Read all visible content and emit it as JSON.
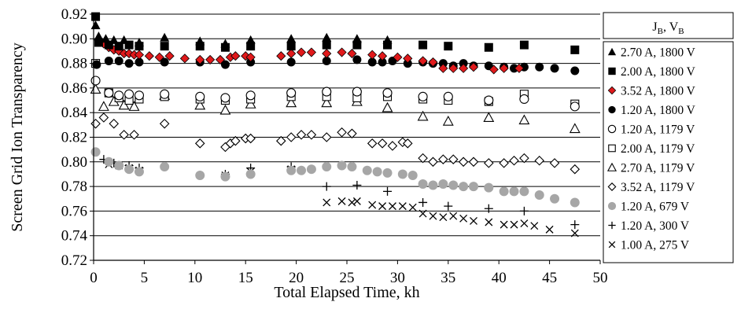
{
  "chart_data": {
    "type": "scatter",
    "title": "",
    "xlabel": "Total Elapsed Time, kh",
    "ylabel": "Screen Grid Ion Transparency",
    "xlim": [
      0,
      50
    ],
    "ylim": [
      0.72,
      0.92
    ],
    "xticks": [
      "0",
      "5",
      "10",
      "15",
      "20",
      "25",
      "30",
      "35",
      "40",
      "45",
      "50"
    ],
    "yticks": [
      "0.72",
      "0.74",
      "0.76",
      "0.78",
      "0.80",
      "0.82",
      "0.84",
      "0.86",
      "0.88",
      "0.90",
      "0.92"
    ],
    "grid": "horizontal",
    "legend_position": "right",
    "legend_title": {
      "main": "J",
      "sub1": "B",
      "sep": ", V",
      "sub2": "B"
    },
    "series": [
      {
        "name": "2.70 A, 1800 V",
        "marker": "triangle-filled",
        "color": "#000000",
        "x": [
          0.2,
          0.5,
          1.2,
          2.0,
          3.0,
          4.5,
          7.0,
          10.5,
          13.0,
          15.5,
          19.5,
          23.0,
          26.0,
          29.0
        ],
        "y": [
          0.911,
          0.902,
          0.9,
          0.899,
          0.899,
          0.897,
          0.901,
          0.898,
          0.896,
          0.899,
          0.9,
          0.901,
          0.9,
          0.899
        ]
      },
      {
        "name": "2.00 A, 1800 V",
        "marker": "square-filled",
        "color": "#000000",
        "x": [
          0.2,
          0.5,
          1.5,
          2.5,
          3.5,
          4.5,
          7.0,
          10.5,
          13.0,
          15.5,
          19.5,
          23.0,
          26.0,
          29.0,
          32.5,
          35.0,
          39.0,
          42.5,
          47.5
        ],
        "y": [
          0.918,
          0.897,
          0.895,
          0.894,
          0.895,
          0.894,
          0.894,
          0.894,
          0.893,
          0.894,
          0.894,
          0.895,
          0.895,
          0.895,
          0.895,
          0.894,
          0.893,
          0.895,
          0.891
        ]
      },
      {
        "name": "3.52 A, 1800 V",
        "marker": "diamond-red",
        "color": "#e0191b",
        "x": [
          0.5,
          1.0,
          1.5,
          2.0,
          2.5,
          3.0,
          3.5,
          4.0,
          4.5,
          5.5,
          6.5,
          7.5,
          9.0,
          10.5,
          11.5,
          12.5,
          13.5,
          14.0,
          15.0,
          15.5,
          18.5,
          19.5,
          20.5,
          21.5,
          23.0,
          24.5,
          25.5,
          27.5,
          28.5,
          30.0,
          31.0,
          32.5,
          33.5,
          34.5,
          35.5,
          36.5,
          37.5,
          39.5,
          40.5,
          42.0
        ],
        "y": [
          0.899,
          0.896,
          0.893,
          0.891,
          0.89,
          0.888,
          0.888,
          0.887,
          0.887,
          0.886,
          0.885,
          0.886,
          0.884,
          0.883,
          0.883,
          0.883,
          0.885,
          0.886,
          0.886,
          0.885,
          0.886,
          0.888,
          0.889,
          0.889,
          0.888,
          0.889,
          0.888,
          0.887,
          0.886,
          0.885,
          0.884,
          0.882,
          0.881,
          0.876,
          0.876,
          0.876,
          0.877,
          0.875,
          0.876,
          0.876
        ]
      },
      {
        "name": "1.20 A, 1800 V",
        "marker": "circle-filled",
        "color": "#000000",
        "x": [
          0.3,
          1.5,
          2.5,
          3.5,
          4.5,
          7.0,
          10.5,
          13.0,
          15.5,
          19.5,
          23.0,
          26.0,
          27.5,
          28.5,
          29.5,
          31.0,
          32.5,
          33.5,
          34.5,
          35.5,
          36.5,
          37.5,
          39.0,
          40.5,
          41.5,
          42.5,
          44.0,
          45.5,
          47.5
        ],
        "y": [
          0.879,
          0.882,
          0.882,
          0.88,
          0.881,
          0.881,
          0.881,
          0.879,
          0.881,
          0.881,
          0.882,
          0.883,
          0.881,
          0.881,
          0.882,
          0.88,
          0.881,
          0.88,
          0.88,
          0.878,
          0.88,
          0.878,
          0.878,
          0.877,
          0.876,
          0.877,
          0.877,
          0.876,
          0.874
        ]
      },
      {
        "name": "1.20 A, 1179 V",
        "marker": "circle-open",
        "color": "#000000",
        "x": [
          0.2,
          1.5,
          2.5,
          3.5,
          4.5,
          7.0,
          10.5,
          13.0,
          15.5,
          19.5,
          23.0,
          26.0,
          29.0,
          32.5,
          35.0,
          39.0,
          42.5,
          47.5
        ],
        "y": [
          0.866,
          0.856,
          0.854,
          0.855,
          0.854,
          0.855,
          0.853,
          0.852,
          0.854,
          0.856,
          0.857,
          0.857,
          0.856,
          0.853,
          0.853,
          0.85,
          0.851,
          0.845
        ]
      },
      {
        "name": "2.00 A, 1179 V",
        "marker": "square-open",
        "color": "#000000",
        "x": [
          0.2,
          1.5,
          2.5,
          3.5,
          4.5,
          7.0,
          10.5,
          13.0,
          15.5,
          19.5,
          23.0,
          26.0,
          29.0,
          32.5,
          35.0,
          39.0,
          42.5,
          47.5
        ],
        "y": [
          0.88,
          0.856,
          0.852,
          0.85,
          0.851,
          0.853,
          0.851,
          0.85,
          0.851,
          0.853,
          0.853,
          0.852,
          0.853,
          0.851,
          0.85,
          0.849,
          0.855,
          0.847
        ]
      },
      {
        "name": "2.70 A, 1179 V",
        "marker": "triangle-open",
        "color": "#000000",
        "x": [
          0.2,
          1.0,
          2.0,
          3.0,
          4.0,
          7.0,
          10.5,
          13.0,
          15.5,
          19.5,
          23.0,
          26.0,
          29.0,
          32.5,
          35.0,
          39.0,
          42.5,
          47.5
        ],
        "y": [
          0.859,
          0.845,
          0.849,
          0.846,
          0.845,
          0.854,
          0.846,
          0.842,
          0.847,
          0.848,
          0.848,
          0.849,
          0.844,
          0.837,
          0.833,
          0.836,
          0.834,
          0.827
        ]
      },
      {
        "name": "3.52 A, 1179 V",
        "marker": "diamond-open",
        "color": "#000000",
        "x": [
          0.2,
          1.0,
          2.0,
          3.0,
          4.0,
          7.0,
          10.5,
          13.0,
          13.5,
          14.0,
          15.0,
          15.5,
          18.5,
          19.5,
          20.5,
          21.5,
          23.0,
          24.5,
          25.5,
          27.5,
          28.5,
          29.5,
          30.5,
          31.0,
          32.5,
          33.5,
          34.5,
          35.5,
          36.5,
          37.5,
          39.0,
          40.5,
          41.5,
          42.5,
          44.0,
          45.5,
          47.5
        ],
        "y": [
          0.831,
          0.836,
          0.831,
          0.822,
          0.822,
          0.831,
          0.815,
          0.812,
          0.815,
          0.817,
          0.819,
          0.819,
          0.817,
          0.82,
          0.822,
          0.822,
          0.82,
          0.824,
          0.823,
          0.815,
          0.815,
          0.813,
          0.816,
          0.815,
          0.803,
          0.8,
          0.802,
          0.802,
          0.8,
          0.8,
          0.799,
          0.799,
          0.801,
          0.803,
          0.801,
          0.799,
          0.794
        ]
      },
      {
        "name": "1.20 A, 679 V",
        "marker": "circle-gray",
        "color": "#a6a6a6",
        "x": [
          0.2,
          1.5,
          2.5,
          3.5,
          4.5,
          7.0,
          10.5,
          13.0,
          15.5,
          19.5,
          20.5,
          21.5,
          23.0,
          24.5,
          25.5,
          27.0,
          28.0,
          29.0,
          30.5,
          31.5,
          32.5,
          33.5,
          34.5,
          35.5,
          36.5,
          37.5,
          39.0,
          40.5,
          41.5,
          42.5,
          44.0,
          45.5,
          47.5
        ],
        "y": [
          0.808,
          0.8,
          0.797,
          0.794,
          0.792,
          0.796,
          0.789,
          0.788,
          0.79,
          0.793,
          0.793,
          0.794,
          0.796,
          0.797,
          0.796,
          0.793,
          0.792,
          0.791,
          0.79,
          0.789,
          0.782,
          0.781,
          0.782,
          0.781,
          0.78,
          0.78,
          0.779,
          0.776,
          0.776,
          0.776,
          0.773,
          0.77,
          0.767
        ]
      },
      {
        "name": "1.20 A, 300 V",
        "marker": "plus",
        "color": "#000000",
        "x": [
          1.0,
          2.0,
          3.5,
          4.5,
          13.0,
          15.5,
          19.5,
          23.0,
          26.0,
          29.0,
          32.5,
          35.0,
          39.0,
          42.5,
          47.5
        ],
        "y": [
          0.802,
          0.799,
          0.797,
          0.795,
          0.79,
          0.795,
          0.796,
          0.78,
          0.781,
          0.776,
          0.767,
          0.764,
          0.762,
          0.76,
          0.749
        ]
      },
      {
        "name": "1.00 A, 275 V",
        "marker": "cross",
        "color": "#000000",
        "x": [
          1.5,
          2.5,
          3.5,
          4.5,
          13.0,
          15.5,
          19.5,
          23.0,
          24.5,
          25.5,
          26.0,
          27.5,
          28.5,
          29.5,
          30.5,
          31.5,
          32.5,
          33.5,
          34.5,
          35.5,
          36.5,
          37.5,
          39.0,
          40.5,
          41.5,
          42.5,
          43.5,
          45.0,
          47.5
        ],
        "y": [
          0.798,
          0.797,
          0.795,
          0.793,
          0.789,
          0.792,
          0.794,
          0.767,
          0.768,
          0.767,
          0.768,
          0.765,
          0.764,
          0.764,
          0.764,
          0.763,
          0.758,
          0.756,
          0.755,
          0.756,
          0.754,
          0.752,
          0.751,
          0.749,
          0.749,
          0.75,
          0.748,
          0.745,
          0.742
        ]
      }
    ]
  }
}
